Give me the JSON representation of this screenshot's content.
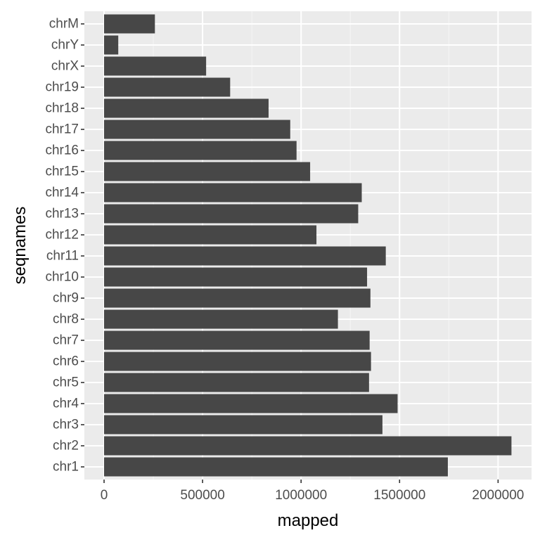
{
  "chart_data": {
    "type": "bar",
    "orientation": "horizontal",
    "xlabel": "mapped",
    "ylabel": "seqnames",
    "categories": [
      "chr1",
      "chr2",
      "chr3",
      "chr4",
      "chr5",
      "chr6",
      "chr7",
      "chr8",
      "chr9",
      "chr10",
      "chr11",
      "chr12",
      "chr13",
      "chr14",
      "chr15",
      "chr16",
      "chr17",
      "chr18",
      "chr19",
      "chrX",
      "chrY",
      "chrM"
    ],
    "values": [
      1745000,
      2068000,
      1413000,
      1490000,
      1345000,
      1355000,
      1348000,
      1187000,
      1352000,
      1335000,
      1430000,
      1078000,
      1290000,
      1308000,
      1046000,
      977000,
      945000,
      835000,
      640000,
      518000,
      72000,
      258000
    ],
    "xlim": [
      -100000,
      2170000
    ],
    "x_ticks": [
      0,
      500000,
      1000000,
      1500000,
      2000000
    ],
    "x_tick_labels": [
      "0",
      "500000",
      "1000000",
      "1500000",
      "2000000"
    ],
    "grid": true,
    "colors": {
      "bar": "#474747",
      "panel_background": "#ebebeb",
      "grid_major": "#ffffff",
      "grid_minor": "#f5f5f5",
      "tick_text": "#4d4d4d",
      "tick_mark": "#333333"
    }
  }
}
